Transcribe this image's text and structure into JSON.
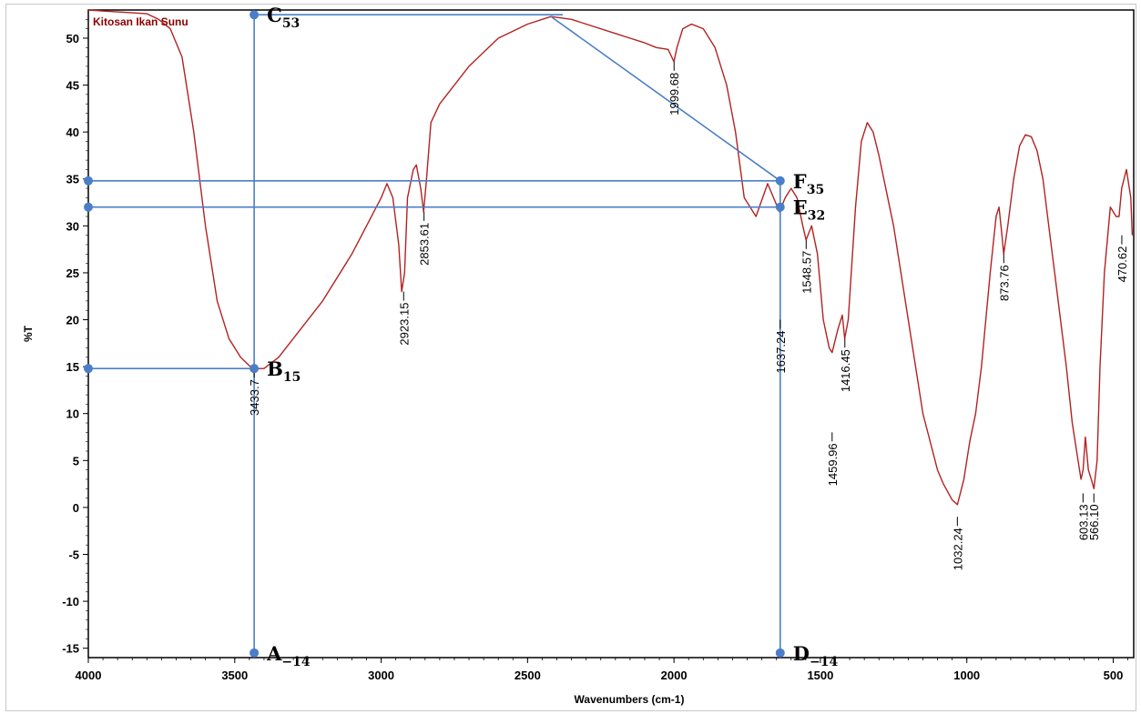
{
  "chart_data": {
    "type": "line",
    "title": "Kitosan Ikan Sunu",
    "xlabel": "Wavenumbers (cm-1)",
    "ylabel": "%T",
    "xlim": [
      4000,
      430
    ],
    "ylim": [
      -16,
      53
    ],
    "x_reversed": true,
    "x_ticks": [
      "4000",
      "3500",
      "3000",
      "2500",
      "2000",
      "1500",
      "1000",
      "500"
    ],
    "x_tick_values": [
      4000,
      3500,
      3000,
      2500,
      2000,
      1500,
      1000,
      500
    ],
    "y_ticks": [
      "50",
      "45",
      "40",
      "35",
      "30",
      "25",
      "20",
      "15",
      "10",
      "5",
      "0",
      "-5",
      "-10",
      "-15"
    ],
    "y_tick_values": [
      50,
      45,
      40,
      35,
      30,
      25,
      20,
      15,
      10,
      5,
      0,
      -5,
      -10,
      -15
    ],
    "grid": false,
    "series": [
      {
        "color": "#b22222",
        "x": [
          4000,
          3900,
          3800,
          3760,
          3720,
          3680,
          3640,
          3600,
          3560,
          3520,
          3480,
          3440,
          3400,
          3350,
          3300,
          3200,
          3100,
          3000,
          2980,
          2960,
          2940,
          2930,
          2920,
          2910,
          2890,
          2880,
          2865,
          2855,
          2845,
          2830,
          2800,
          2700,
          2600,
          2500,
          2420,
          2350,
          2300,
          2200,
          2150,
          2100,
          2060,
          2020,
          2000,
          1990,
          1970,
          1940,
          1900,
          1860,
          1820,
          1790,
          1760,
          1720,
          1680,
          1660,
          1640,
          1620,
          1600,
          1580,
          1560,
          1549,
          1530,
          1510,
          1490,
          1470,
          1460,
          1440,
          1425,
          1417,
          1405,
          1380,
          1360,
          1340,
          1320,
          1300,
          1250,
          1200,
          1150,
          1100,
          1080,
          1050,
          1032,
          1010,
          990,
          970,
          950,
          920,
          900,
          890,
          880,
          874,
          860,
          840,
          820,
          800,
          780,
          760,
          740,
          720,
          700,
          680,
          660,
          640,
          620,
          610,
          603,
          595,
          585,
          575,
          566,
          555,
          545,
          530,
          510,
          490,
          480,
          471,
          455,
          440,
          435
        ],
        "y": [
          53,
          52.8,
          52.6,
          52,
          51,
          48,
          40,
          30,
          22,
          18,
          16,
          14.8,
          14.8,
          16,
          18,
          22,
          27,
          33,
          34.5,
          33,
          28,
          23,
          25,
          33,
          36,
          36.5,
          34,
          31.5,
          35,
          41,
          43,
          47,
          50,
          51.5,
          52.3,
          52,
          51.5,
          50.5,
          50,
          49.5,
          49,
          48.8,
          47.5,
          49,
          51,
          51.5,
          51,
          49,
          45,
          40,
          33,
          31,
          34.5,
          33,
          31.5,
          33,
          34,
          33,
          30,
          28.5,
          30,
          27,
          20,
          17,
          16.5,
          19,
          20.5,
          18,
          20,
          32,
          39,
          41,
          40,
          37.5,
          30,
          20,
          10,
          4,
          2.5,
          0.8,
          0.3,
          3,
          7,
          10,
          15,
          25,
          31,
          32,
          29,
          27,
          30,
          35,
          38.5,
          39.7,
          39.5,
          38,
          35,
          30,
          25,
          20,
          15,
          9,
          5,
          3,
          4,
          7.5,
          4,
          3,
          2,
          5,
          15,
          25,
          32,
          31,
          31,
          34,
          36,
          33,
          29
        ]
      }
    ],
    "peak_labels": [
      {
        "text": "3433.7",
        "x": 3433.7,
        "y": 14.8
      },
      {
        "text": "2923.15",
        "x": 2923.15,
        "y": 23
      },
      {
        "text": "2853.61",
        "x": 2853.61,
        "y": 31.5
      },
      {
        "text": "1999.68",
        "x": 1999.68,
        "y": 47.5
      },
      {
        "text": "1637.24",
        "x": 1637.24,
        "y": 20
      },
      {
        "text": "1548.57",
        "x": 1548.57,
        "y": 28.5
      },
      {
        "text": "1459.96",
        "x": 1459.96,
        "y": 8
      },
      {
        "text": "1416.45",
        "x": 1416.45,
        "y": 18
      },
      {
        "text": "1032.24",
        "x": 1032.24,
        "y": -1
      },
      {
        "text": "873.76",
        "x": 873.76,
        "y": 27
      },
      {
        "text": "603.13",
        "x": 603.13,
        "y": 1.5
      },
      {
        "text": "566.10",
        "x": 566.1,
        "y": 1.5
      },
      {
        "text": "470.62",
        "x": 470.62,
        "y": 29
      }
    ],
    "annotation_points": [
      {
        "name": "A",
        "sub": "−14",
        "x": 3433.7,
        "y": -15.5
      },
      {
        "name": "B",
        "sub": "15",
        "x": 3433.7,
        "y": 14.8
      },
      {
        "name": "C",
        "sub": "53",
        "x": 3433.7,
        "y": 52.5
      },
      {
        "name": "D",
        "sub": "−14",
        "x": 1637.24,
        "y": -15.5
      },
      {
        "name": "E",
        "sub": "32",
        "x": 1637.24,
        "y": 32
      },
      {
        "name": "F",
        "sub": "35",
        "x": 1637.24,
        "y": 34.8
      }
    ],
    "left_markers": [
      34.8,
      32,
      14.8
    ],
    "baseline_line": {
      "from": {
        "x": 2420,
        "y": 52.3
      },
      "to": {
        "x": 1637.24,
        "y": 34.8
      }
    },
    "top_line": {
      "from": {
        "x": 3433.7,
        "y": 52.5
      },
      "to": {
        "x": 2380,
        "y": 52.5
      }
    },
    "annotation_color": "#4a7ec8",
    "spectrum_color": "#b22222"
  }
}
